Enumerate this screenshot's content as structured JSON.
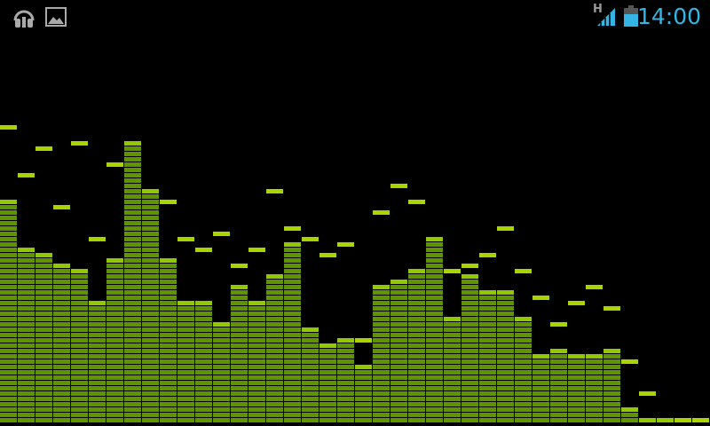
{
  "status_bar": {
    "left_icons": [
      "headphones-icon",
      "image-icon"
    ],
    "network_type": "H",
    "signal_icon": "signal-strength-icon",
    "battery_icon": "battery-icon",
    "time": "14:00",
    "accent_color": "#33b5e5"
  },
  "visualizer": {
    "bar_color": "#5f9300",
    "top_segment_color": "#92c800",
    "peak_color": "#a8d400",
    "levels": [
      42,
      33,
      32,
      30,
      29,
      23,
      31,
      53,
      44,
      31,
      23,
      23,
      19,
      26,
      23,
      28,
      34,
      18,
      15,
      16,
      11,
      26,
      27,
      29,
      35,
      20,
      28,
      25,
      25,
      20,
      13,
      14,
      13,
      13,
      14,
      3,
      1,
      1,
      0,
      0
    ],
    "peaks": [
      56,
      47,
      52,
      41,
      53,
      35,
      49,
      53,
      44,
      42,
      35,
      33,
      36,
      30,
      33,
      44,
      37,
      35,
      32,
      34,
      16,
      40,
      45,
      42,
      35,
      29,
      30,
      32,
      37,
      29,
      24,
      19,
      23,
      26,
      22,
      12,
      6,
      1,
      1,
      1
    ]
  }
}
